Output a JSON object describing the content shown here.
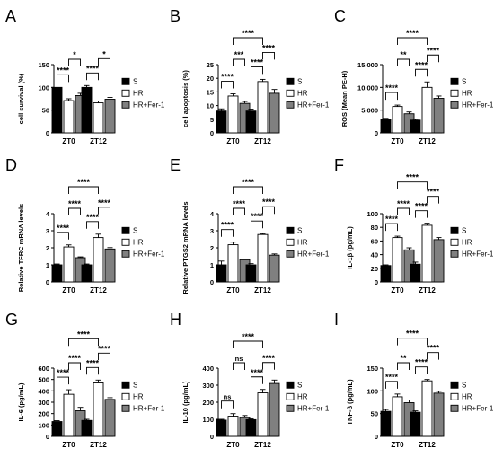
{
  "figure": {
    "legend_labels": [
      "S",
      "HR",
      "HR+Fer-1"
    ],
    "colors": {
      "S": "#000000",
      "HR": "#ffffff",
      "HR+Fer-1": "#808080",
      "axis": "#000000"
    }
  },
  "chart_data": [
    {
      "panel": "A",
      "type": "bar",
      "ylabel": "cell survival (%)",
      "categories": [
        "ZT0",
        "ZT12"
      ],
      "ylim": [
        0,
        150
      ],
      "yticks": [
        0,
        50,
        100,
        150
      ],
      "series": [
        {
          "name": "S",
          "values": [
            100,
            100
          ],
          "errors": [
            0,
            4
          ]
        },
        {
          "name": "HR",
          "values": [
            71,
            66
          ],
          "errors": [
            4,
            4
          ]
        },
        {
          "name": "HR+Fer-1",
          "values": [
            82,
            74
          ],
          "errors": [
            5,
            4
          ]
        }
      ],
      "annotations": [
        {
          "label": "****",
          "from": [
            0,
            0
          ],
          "to": [
            0,
            1
          ],
          "level": 0
        },
        {
          "label": "*",
          "from": [
            0,
            1
          ],
          "to": [
            0,
            2
          ],
          "level": 1
        },
        {
          "label": "****",
          "from": [
            1,
            0
          ],
          "to": [
            1,
            1
          ],
          "level": 0
        },
        {
          "label": "*",
          "from": [
            1,
            1
          ],
          "to": [
            1,
            2
          ],
          "level": 1
        }
      ]
    },
    {
      "panel": "B",
      "type": "bar",
      "ylabel": "cell apoptosis (%)",
      "categories": [
        "ZT0",
        "ZT12"
      ],
      "ylim": [
        0,
        25
      ],
      "yticks": [
        0,
        5,
        10,
        15,
        20,
        25
      ],
      "series": [
        {
          "name": "S",
          "values": [
            8,
            8
          ],
          "errors": [
            0.8,
            0.7
          ]
        },
        {
          "name": "HR",
          "values": [
            13.5,
            18.8
          ],
          "errors": [
            0.8,
            0.8
          ]
        },
        {
          "name": "HR+Fer-1",
          "values": [
            10.8,
            14.5
          ],
          "errors": [
            0.7,
            1.4
          ]
        }
      ],
      "annotations": [
        {
          "label": "****",
          "from": [
            0,
            0
          ],
          "to": [
            0,
            1
          ],
          "level": 0
        },
        {
          "label": "***",
          "from": [
            0,
            1
          ],
          "to": [
            0,
            2
          ],
          "level": 1
        },
        {
          "label": "****",
          "from": [
            1,
            0
          ],
          "to": [
            1,
            1
          ],
          "level": 0
        },
        {
          "label": "****",
          "from": [
            1,
            1
          ],
          "to": [
            1,
            2
          ],
          "level": 1
        },
        {
          "label": "****",
          "from": [
            0,
            1
          ],
          "to": [
            1,
            1
          ],
          "level": 2
        }
      ]
    },
    {
      "panel": "C",
      "type": "bar",
      "ylabel": "ROS (Mean PE-H)",
      "categories": [
        "ZT0",
        "ZT12"
      ],
      "ylim": [
        0,
        15000
      ],
      "yticks": [
        0,
        5000,
        10000,
        15000
      ],
      "ytick_labels": [
        "0",
        "5,000",
        "10,000",
        "15,000"
      ],
      "series": [
        {
          "name": "S",
          "values": [
            3000,
            2800
          ],
          "errors": [
            200,
            200
          ]
        },
        {
          "name": "HR",
          "values": [
            5800,
            10000
          ],
          "errors": [
            300,
            1200
          ]
        },
        {
          "name": "HR+Fer-1",
          "values": [
            4200,
            7600
          ],
          "errors": [
            400,
            500
          ]
        }
      ],
      "annotations": [
        {
          "label": "****",
          "from": [
            0,
            0
          ],
          "to": [
            0,
            1
          ],
          "level": 0
        },
        {
          "label": "**",
          "from": [
            0,
            1
          ],
          "to": [
            0,
            2
          ],
          "level": 1
        },
        {
          "label": "****",
          "from": [
            1,
            0
          ],
          "to": [
            1,
            1
          ],
          "level": 0
        },
        {
          "label": "****",
          "from": [
            1,
            1
          ],
          "to": [
            1,
            2
          ],
          "level": 1
        },
        {
          "label": "****",
          "from": [
            0,
            1
          ],
          "to": [
            1,
            1
          ],
          "level": 2
        }
      ]
    },
    {
      "panel": "D",
      "type": "bar",
      "ylabel": "Relative TFRC mRNA levels",
      "categories": [
        "ZT0",
        "ZT12"
      ],
      "ylim": [
        0,
        4
      ],
      "yticks": [
        0,
        1,
        2,
        3,
        4
      ],
      "series": [
        {
          "name": "S",
          "values": [
            1.0,
            1.0
          ],
          "errors": [
            0.05,
            0.05
          ]
        },
        {
          "name": "HR",
          "values": [
            2.05,
            2.6
          ],
          "errors": [
            0.12,
            0.2
          ]
        },
        {
          "name": "HR+Fer-1",
          "values": [
            1.42,
            1.93
          ],
          "errors": [
            0.05,
            0.08
          ]
        }
      ],
      "annotations": [
        {
          "label": "****",
          "from": [
            0,
            0
          ],
          "to": [
            0,
            1
          ],
          "level": 0
        },
        {
          "label": "****",
          "from": [
            0,
            1
          ],
          "to": [
            0,
            2
          ],
          "level": 1
        },
        {
          "label": "****",
          "from": [
            1,
            0
          ],
          "to": [
            1,
            1
          ],
          "level": 0
        },
        {
          "label": "****",
          "from": [
            1,
            1
          ],
          "to": [
            1,
            2
          ],
          "level": 1
        },
        {
          "label": "****",
          "from": [
            0,
            1
          ],
          "to": [
            1,
            1
          ],
          "level": 2
        }
      ]
    },
    {
      "panel": "E",
      "type": "bar",
      "ylabel": "Relative PTGS2 mRNA levels",
      "categories": [
        "ZT0",
        "ZT12"
      ],
      "ylim": [
        0,
        4
      ],
      "yticks": [
        0,
        1,
        2,
        3,
        4
      ],
      "series": [
        {
          "name": "S",
          "values": [
            1.0,
            1.0
          ],
          "errors": [
            0.22,
            0.07
          ]
        },
        {
          "name": "HR",
          "values": [
            2.18,
            2.78
          ],
          "errors": [
            0.15,
            0.05
          ]
        },
        {
          "name": "HR+Fer-1",
          "values": [
            1.3,
            1.57
          ],
          "errors": [
            0.04,
            0.07
          ]
        }
      ],
      "annotations": [
        {
          "label": "****",
          "from": [
            0,
            0
          ],
          "to": [
            0,
            1
          ],
          "level": 0
        },
        {
          "label": "****",
          "from": [
            0,
            1
          ],
          "to": [
            0,
            2
          ],
          "level": 1
        },
        {
          "label": "****",
          "from": [
            1,
            0
          ],
          "to": [
            1,
            1
          ],
          "level": 0
        },
        {
          "label": "****",
          "from": [
            1,
            1
          ],
          "to": [
            1,
            2
          ],
          "level": 1
        },
        {
          "label": "****",
          "from": [
            0,
            1
          ],
          "to": [
            1,
            1
          ],
          "level": 2
        }
      ]
    },
    {
      "panel": "F",
      "type": "bar",
      "ylabel": "IL-1β (pg/mL)",
      "categories": [
        "ZT0",
        "ZT12"
      ],
      "ylim": [
        0,
        100
      ],
      "yticks": [
        0,
        20,
        40,
        60,
        80,
        100
      ],
      "series": [
        {
          "name": "S",
          "values": [
            24,
            26
          ],
          "errors": [
            1,
            3
          ]
        },
        {
          "name": "HR",
          "values": [
            65,
            83
          ],
          "errors": [
            2,
            3
          ]
        },
        {
          "name": "HR+Fer-1",
          "values": [
            47,
            62
          ],
          "errors": [
            3,
            3
          ]
        }
      ],
      "annotations": [
        {
          "label": "****",
          "from": [
            0,
            0
          ],
          "to": [
            0,
            1
          ],
          "level": 0
        },
        {
          "label": "****",
          "from": [
            0,
            1
          ],
          "to": [
            0,
            2
          ],
          "level": 1
        },
        {
          "label": "****",
          "from": [
            1,
            0
          ],
          "to": [
            1,
            1
          ],
          "level": 0
        },
        {
          "label": "****",
          "from": [
            1,
            1
          ],
          "to": [
            1,
            2
          ],
          "level": 1
        },
        {
          "label": "****",
          "from": [
            0,
            1
          ],
          "to": [
            1,
            1
          ],
          "level": 2
        }
      ]
    },
    {
      "panel": "G",
      "type": "bar",
      "ylabel": "IL-6 (pg/mL)",
      "categories": [
        "ZT0",
        "ZT12"
      ],
      "ylim": [
        0,
        600
      ],
      "yticks": [
        0,
        100,
        200,
        300,
        400,
        500,
        600
      ],
      "series": [
        {
          "name": "S",
          "values": [
            130,
            140
          ],
          "errors": [
            8,
            10
          ]
        },
        {
          "name": "HR",
          "values": [
            370,
            470
          ],
          "errors": [
            40,
            25
          ]
        },
        {
          "name": "HR+Fer-1",
          "values": [
            225,
            325
          ],
          "errors": [
            30,
            15
          ]
        }
      ],
      "annotations": [
        {
          "label": "****",
          "from": [
            0,
            0
          ],
          "to": [
            0,
            1
          ],
          "level": 0
        },
        {
          "label": "****",
          "from": [
            0,
            1
          ],
          "to": [
            0,
            2
          ],
          "level": 1
        },
        {
          "label": "****",
          "from": [
            1,
            0
          ],
          "to": [
            1,
            1
          ],
          "level": 0
        },
        {
          "label": "****",
          "from": [
            1,
            1
          ],
          "to": [
            1,
            2
          ],
          "level": 1
        },
        {
          "label": "****",
          "from": [
            0,
            1
          ],
          "to": [
            1,
            1
          ],
          "level": 2
        }
      ]
    },
    {
      "panel": "H",
      "type": "bar",
      "ylabel": "IL-10 (pg/mL)",
      "categories": [
        "ZT0",
        "ZT12"
      ],
      "ylim": [
        0,
        400
      ],
      "yticks": [
        0,
        100,
        200,
        300,
        400
      ],
      "series": [
        {
          "name": "S",
          "values": [
            95,
            98
          ],
          "errors": [
            5,
            5
          ]
        },
        {
          "name": "HR",
          "values": [
            118,
            255
          ],
          "errors": [
            15,
            20
          ]
        },
        {
          "name": "HR+Fer-1",
          "values": [
            110,
            310
          ],
          "errors": [
            12,
            20
          ]
        }
      ],
      "annotations": [
        {
          "label": "ns",
          "from": [
            0,
            0
          ],
          "to": [
            0,
            1
          ],
          "level": 0
        },
        {
          "label": "ns",
          "from": [
            0,
            1
          ],
          "to": [
            0,
            2
          ],
          "level": 1
        },
        {
          "label": "****",
          "from": [
            1,
            0
          ],
          "to": [
            1,
            1
          ],
          "level": 0
        },
        {
          "label": "****",
          "from": [
            1,
            1
          ],
          "to": [
            1,
            2
          ],
          "level": 1
        },
        {
          "label": "****",
          "from": [
            0,
            1
          ],
          "to": [
            1,
            1
          ],
          "level": 2
        }
      ]
    },
    {
      "panel": "I",
      "type": "bar",
      "ylabel": "TNF-β (pg/mL)",
      "categories": [
        "ZT0",
        "ZT12"
      ],
      "ylim": [
        0,
        150
      ],
      "yticks": [
        0,
        50,
        100,
        150
      ],
      "series": [
        {
          "name": "S",
          "values": [
            55,
            53
          ],
          "errors": [
            4,
            3
          ]
        },
        {
          "name": "HR",
          "values": [
            87,
            122
          ],
          "errors": [
            6,
            3
          ]
        },
        {
          "name": "HR+Fer-1",
          "values": [
            74,
            95
          ],
          "errors": [
            6,
            4
          ]
        }
      ],
      "annotations": [
        {
          "label": "****",
          "from": [
            0,
            0
          ],
          "to": [
            0,
            1
          ],
          "level": 0
        },
        {
          "label": "**",
          "from": [
            0,
            1
          ],
          "to": [
            0,
            2
          ],
          "level": 1
        },
        {
          "label": "****",
          "from": [
            1,
            0
          ],
          "to": [
            1,
            1
          ],
          "level": 0
        },
        {
          "label": "****",
          "from": [
            1,
            1
          ],
          "to": [
            1,
            2
          ],
          "level": 1
        },
        {
          "label": "****",
          "from": [
            0,
            1
          ],
          "to": [
            1,
            1
          ],
          "level": 2
        }
      ]
    }
  ]
}
